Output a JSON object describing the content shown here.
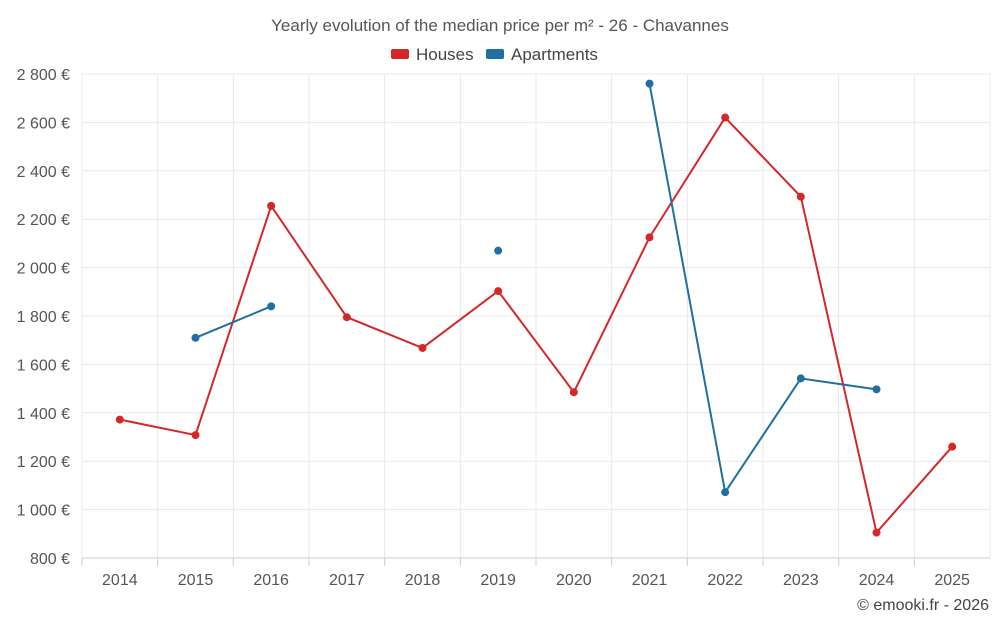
{
  "chart_data": {
    "type": "line",
    "title": "Yearly evolution of the median price per m² - 26 - Chavannes",
    "xlabel": "",
    "ylabel": "",
    "categories": [
      "2014",
      "2015",
      "2016",
      "2017",
      "2018",
      "2019",
      "2020",
      "2021",
      "2022",
      "2023",
      "2024",
      "2025"
    ],
    "ylim": [
      800,
      2800
    ],
    "yticks": [
      800,
      1000,
      1200,
      1400,
      1600,
      1800,
      2000,
      2200,
      2400,
      2600,
      2800
    ],
    "ytick_labels": [
      "800 €",
      "1 000 €",
      "1 200 €",
      "1 400 €",
      "1 600 €",
      "1 800 €",
      "2 000 €",
      "2 200 €",
      "2 400 €",
      "2 600 €",
      "2 800 €"
    ],
    "grid": true,
    "legend_position": "top-center",
    "series": [
      {
        "name": "Houses",
        "color": "#d62728",
        "values": [
          1372,
          1308,
          2255,
          1795,
          1668,
          1903,
          1485,
          2125,
          2620,
          2293,
          905,
          1260
        ]
      },
      {
        "name": "Apartments",
        "color": "#1f6fa0",
        "values": [
          null,
          1710,
          1840,
          null,
          null,
          2070,
          null,
          2760,
          1072,
          1542,
          1497,
          null
        ]
      }
    ]
  },
  "credit": "© emooki.fr - 2026"
}
